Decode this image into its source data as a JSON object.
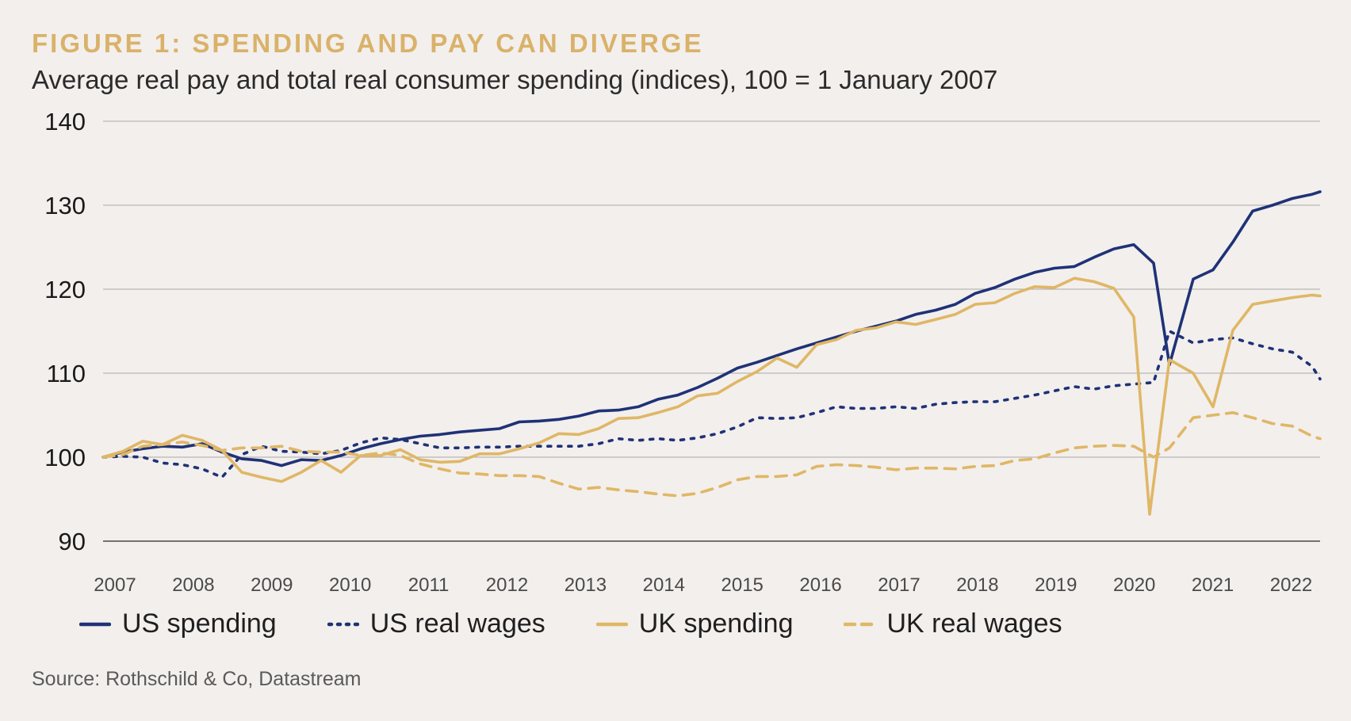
{
  "header": {
    "title": "FIGURE 1: SPENDING AND PAY CAN DIVERGE",
    "subtitle": "Average real pay and total real consumer spending (indices), 100 = 1 January 2007"
  },
  "footer": {
    "source": "Source: Rothschild & Co, Datastream"
  },
  "colors": {
    "navy": "#1f3277",
    "gold": "#dfb766",
    "grid": "#a8a8a8",
    "axis": "#4a4a4a"
  },
  "chart_data": {
    "type": "line",
    "title": "FIGURE 1: SPENDING AND PAY CAN DIVERGE",
    "subtitle": "Average real pay and total real consumer spending (indices), 100 = 1 January 2007",
    "xlim": [
      2007,
      2022.35
    ],
    "ylim": [
      90,
      140
    ],
    "yticks": [
      90,
      100,
      110,
      120,
      130,
      140
    ],
    "xticks": [
      "2007",
      "2008",
      "2009",
      "2010",
      "2011",
      "2012",
      "2013",
      "2014",
      "2015",
      "2016",
      "2017",
      "2018",
      "2019",
      "2020",
      "2021",
      "2022"
    ],
    "grid": true,
    "legend_position": "bottom",
    "series": [
      {
        "name": "US spending",
        "color": "#1f3277",
        "dash": "solid",
        "points": [
          [
            2007,
            100
          ],
          [
            2007.25,
            100.6
          ],
          [
            2007.5,
            101
          ],
          [
            2007.75,
            101.3
          ],
          [
            2008,
            101.2
          ],
          [
            2008.25,
            101.6
          ],
          [
            2008.5,
            100.6
          ],
          [
            2008.75,
            99.8
          ],
          [
            2009,
            99.6
          ],
          [
            2009.25,
            99
          ],
          [
            2009.5,
            99.7
          ],
          [
            2009.75,
            99.6
          ],
          [
            2010,
            100.2
          ],
          [
            2010.25,
            101
          ],
          [
            2010.5,
            101.6
          ],
          [
            2010.75,
            102.1
          ],
          [
            2011,
            102.5
          ],
          [
            2011.25,
            102.7
          ],
          [
            2011.5,
            103
          ],
          [
            2011.75,
            103.2
          ],
          [
            2012,
            103.4
          ],
          [
            2012.25,
            104.2
          ],
          [
            2012.5,
            104.3
          ],
          [
            2012.75,
            104.5
          ],
          [
            2013,
            104.9
          ],
          [
            2013.25,
            105.5
          ],
          [
            2013.5,
            105.6
          ],
          [
            2013.75,
            106
          ],
          [
            2014,
            106.9
          ],
          [
            2014.25,
            107.4
          ],
          [
            2014.5,
            108.3
          ],
          [
            2014.75,
            109.4
          ],
          [
            2015,
            110.6
          ],
          [
            2015.25,
            111.3
          ],
          [
            2015.5,
            112.1
          ],
          [
            2015.75,
            112.9
          ],
          [
            2016,
            113.6
          ],
          [
            2016.25,
            114.3
          ],
          [
            2016.5,
            115
          ],
          [
            2016.75,
            115.6
          ],
          [
            2017,
            116.2
          ],
          [
            2017.25,
            117
          ],
          [
            2017.5,
            117.5
          ],
          [
            2017.75,
            118.2
          ],
          [
            2018,
            119.5
          ],
          [
            2018.25,
            120.2
          ],
          [
            2018.5,
            121.2
          ],
          [
            2018.75,
            122
          ],
          [
            2019,
            122.5
          ],
          [
            2019.25,
            122.7
          ],
          [
            2019.5,
            123.8
          ],
          [
            2019.75,
            124.8
          ],
          [
            2020,
            125.3
          ],
          [
            2020.25,
            123.1
          ],
          [
            2020.45,
            111
          ],
          [
            2020.75,
            121.2
          ],
          [
            2021,
            122.3
          ],
          [
            2021.25,
            125.6
          ],
          [
            2021.5,
            129.3
          ],
          [
            2021.75,
            130
          ],
          [
            2022,
            130.8
          ],
          [
            2022.25,
            131.3
          ],
          [
            2022.35,
            131.6
          ]
        ]
      },
      {
        "name": "US real wages",
        "color": "#1f3277",
        "dash": "dotted",
        "points": [
          [
            2007,
            100
          ],
          [
            2007.25,
            100.1
          ],
          [
            2007.5,
            100
          ],
          [
            2007.75,
            99.3
          ],
          [
            2008,
            99.1
          ],
          [
            2008.25,
            98.6
          ],
          [
            2008.5,
            97.6
          ],
          [
            2008.75,
            100.3
          ],
          [
            2009,
            101.3
          ],
          [
            2009.25,
            100.7
          ],
          [
            2009.5,
            100.6
          ],
          [
            2009.75,
            100.4
          ],
          [
            2010,
            100.8
          ],
          [
            2010.25,
            101.7
          ],
          [
            2010.5,
            102.3
          ],
          [
            2010.75,
            102.1
          ],
          [
            2011,
            101.6
          ],
          [
            2011.25,
            101.1
          ],
          [
            2011.5,
            101.1
          ],
          [
            2011.75,
            101.2
          ],
          [
            2012,
            101.2
          ],
          [
            2012.25,
            101.3
          ],
          [
            2012.5,
            101.3
          ],
          [
            2012.75,
            101.3
          ],
          [
            2013,
            101.3
          ],
          [
            2013.25,
            101.6
          ],
          [
            2013.5,
            102.2
          ],
          [
            2013.75,
            102
          ],
          [
            2014,
            102.2
          ],
          [
            2014.25,
            102
          ],
          [
            2014.5,
            102.3
          ],
          [
            2014.75,
            102.8
          ],
          [
            2015,
            103.6
          ],
          [
            2015.25,
            104.7
          ],
          [
            2015.5,
            104.6
          ],
          [
            2015.75,
            104.7
          ],
          [
            2016,
            105.3
          ],
          [
            2016.25,
            106
          ],
          [
            2016.5,
            105.8
          ],
          [
            2016.75,
            105.8
          ],
          [
            2017,
            106
          ],
          [
            2017.25,
            105.8
          ],
          [
            2017.5,
            106.3
          ],
          [
            2017.75,
            106.5
          ],
          [
            2018,
            106.6
          ],
          [
            2018.25,
            106.6
          ],
          [
            2018.5,
            107
          ],
          [
            2018.75,
            107.4
          ],
          [
            2019,
            107.9
          ],
          [
            2019.25,
            108.4
          ],
          [
            2019.5,
            108.1
          ],
          [
            2019.75,
            108.5
          ],
          [
            2020,
            108.7
          ],
          [
            2020.25,
            108.9
          ],
          [
            2020.45,
            115
          ],
          [
            2020.75,
            113.6
          ],
          [
            2021,
            114
          ],
          [
            2021.25,
            114.2
          ],
          [
            2021.5,
            113.5
          ],
          [
            2021.75,
            112.9
          ],
          [
            2022,
            112.5
          ],
          [
            2022.25,
            110.8
          ],
          [
            2022.35,
            109.3
          ]
        ]
      },
      {
        "name": "UK spending",
        "color": "#dfb766",
        "dash": "solid",
        "points": [
          [
            2007,
            100
          ],
          [
            2007.25,
            100.7
          ],
          [
            2007.5,
            101.9
          ],
          [
            2007.75,
            101.5
          ],
          [
            2008,
            102.6
          ],
          [
            2008.25,
            102
          ],
          [
            2008.5,
            100.8
          ],
          [
            2008.75,
            98.2
          ],
          [
            2009,
            97.6
          ],
          [
            2009.25,
            97.1
          ],
          [
            2009.5,
            98.2
          ],
          [
            2009.75,
            99.6
          ],
          [
            2010,
            98.2
          ],
          [
            2010.25,
            100.2
          ],
          [
            2010.5,
            100.2
          ],
          [
            2010.75,
            100.9
          ],
          [
            2011,
            99.7
          ],
          [
            2011.25,
            99.4
          ],
          [
            2011.5,
            99.5
          ],
          [
            2011.75,
            100.4
          ],
          [
            2012,
            100.4
          ],
          [
            2012.25,
            101
          ],
          [
            2012.5,
            101.7
          ],
          [
            2012.75,
            102.8
          ],
          [
            2013,
            102.7
          ],
          [
            2013.25,
            103.4
          ],
          [
            2013.5,
            104.6
          ],
          [
            2013.75,
            104.7
          ],
          [
            2014,
            105.3
          ],
          [
            2014.25,
            106
          ],
          [
            2014.5,
            107.3
          ],
          [
            2014.75,
            107.6
          ],
          [
            2015,
            109
          ],
          [
            2015.25,
            110.2
          ],
          [
            2015.5,
            111.8
          ],
          [
            2015.75,
            110.7
          ],
          [
            2016,
            113.4
          ],
          [
            2016.25,
            114
          ],
          [
            2016.5,
            115.1
          ],
          [
            2016.75,
            115.4
          ],
          [
            2017,
            116.1
          ],
          [
            2017.25,
            115.8
          ],
          [
            2017.5,
            116.4
          ],
          [
            2017.75,
            117
          ],
          [
            2018,
            118.2
          ],
          [
            2018.25,
            118.4
          ],
          [
            2018.5,
            119.5
          ],
          [
            2018.75,
            120.3
          ],
          [
            2019,
            120.2
          ],
          [
            2019.25,
            121.3
          ],
          [
            2019.5,
            120.9
          ],
          [
            2019.75,
            120.1
          ],
          [
            2020,
            116.7
          ],
          [
            2020.2,
            93.2
          ],
          [
            2020.45,
            111.6
          ],
          [
            2020.75,
            110
          ],
          [
            2021,
            106
          ],
          [
            2021.25,
            115.1
          ],
          [
            2021.5,
            118.2
          ],
          [
            2021.75,
            118.6
          ],
          [
            2022,
            119
          ],
          [
            2022.25,
            119.3
          ],
          [
            2022.35,
            119.2
          ]
        ]
      },
      {
        "name": "UK real wages",
        "color": "#dfb766",
        "dash": "dashed",
        "points": [
          [
            2007,
            100
          ],
          [
            2007.25,
            100.3
          ],
          [
            2007.5,
            101.3
          ],
          [
            2007.75,
            101.5
          ],
          [
            2008,
            101.8
          ],
          [
            2008.25,
            101.4
          ],
          [
            2008.5,
            100.8
          ],
          [
            2008.75,
            101.1
          ],
          [
            2009,
            101.1
          ],
          [
            2009.25,
            101.3
          ],
          [
            2009.5,
            100.7
          ],
          [
            2009.75,
            100.6
          ],
          [
            2010,
            100.6
          ],
          [
            2010.25,
            100.2
          ],
          [
            2010.5,
            100.5
          ],
          [
            2010.75,
            100.2
          ],
          [
            2011,
            99.2
          ],
          [
            2011.25,
            98.6
          ],
          [
            2011.5,
            98.1
          ],
          [
            2011.75,
            98
          ],
          [
            2012,
            97.8
          ],
          [
            2012.25,
            97.8
          ],
          [
            2012.5,
            97.7
          ],
          [
            2012.75,
            96.9
          ],
          [
            2013,
            96.2
          ],
          [
            2013.25,
            96.4
          ],
          [
            2013.5,
            96.1
          ],
          [
            2013.75,
            95.9
          ],
          [
            2014,
            95.6
          ],
          [
            2014.25,
            95.4
          ],
          [
            2014.5,
            95.7
          ],
          [
            2014.75,
            96.4
          ],
          [
            2015,
            97.3
          ],
          [
            2015.25,
            97.7
          ],
          [
            2015.5,
            97.7
          ],
          [
            2015.75,
            97.9
          ],
          [
            2016,
            98.9
          ],
          [
            2016.25,
            99.1
          ],
          [
            2016.5,
            99
          ],
          [
            2016.75,
            98.8
          ],
          [
            2017,
            98.5
          ],
          [
            2017.25,
            98.7
          ],
          [
            2017.5,
            98.7
          ],
          [
            2017.75,
            98.6
          ],
          [
            2018,
            98.9
          ],
          [
            2018.25,
            99
          ],
          [
            2018.5,
            99.6
          ],
          [
            2018.75,
            99.8
          ],
          [
            2019,
            100.5
          ],
          [
            2019.25,
            101.1
          ],
          [
            2019.5,
            101.3
          ],
          [
            2019.75,
            101.4
          ],
          [
            2020,
            101.3
          ],
          [
            2020.25,
            100
          ],
          [
            2020.45,
            101.1
          ],
          [
            2020.75,
            104.7
          ],
          [
            2021,
            105
          ],
          [
            2021.25,
            105.3
          ],
          [
            2021.5,
            104.7
          ],
          [
            2021.75,
            104
          ],
          [
            2022,
            103.7
          ],
          [
            2022.25,
            102.5
          ],
          [
            2022.35,
            102.2
          ]
        ]
      }
    ]
  }
}
